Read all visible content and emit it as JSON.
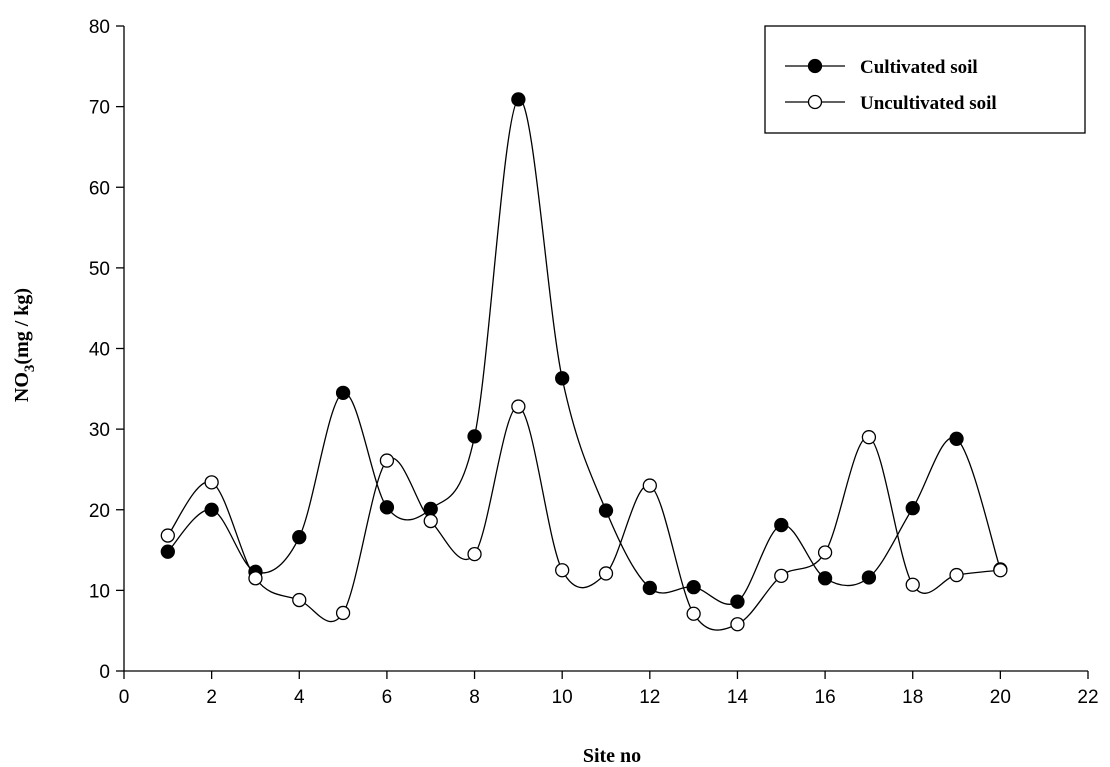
{
  "chart_data": {
    "type": "line",
    "title": "",
    "xlabel": "Site no",
    "ylabel_main": "NO",
    "ylabel_sub": "3",
    "ylabel_rest": "(mg / kg)",
    "xlim": [
      0,
      22
    ],
    "ylim": [
      0,
      80
    ],
    "xticks": [
      0,
      2,
      4,
      6,
      8,
      10,
      12,
      14,
      16,
      18,
      20,
      22
    ],
    "yticks": [
      0,
      10,
      20,
      30,
      40,
      50,
      60,
      70,
      80
    ],
    "grid": false,
    "legend_position": "top-right",
    "x": [
      1,
      2,
      3,
      4,
      5,
      6,
      7,
      8,
      9,
      10,
      11,
      12,
      13,
      14,
      15,
      16,
      17,
      18,
      19,
      20
    ],
    "series": [
      {
        "name": "Cultivated soil",
        "marker": "filled-circle",
        "values": [
          14.8,
          20.0,
          12.3,
          16.6,
          34.5,
          20.3,
          20.1,
          29.1,
          70.9,
          36.3,
          19.9,
          10.3,
          10.4,
          8.6,
          18.1,
          11.5,
          11.6,
          20.2,
          28.8,
          12.6
        ]
      },
      {
        "name": "Uncultivated soil",
        "marker": "open-circle",
        "values": [
          16.8,
          23.4,
          11.5,
          8.8,
          7.2,
          26.1,
          18.6,
          14.5,
          32.8,
          12.5,
          12.1,
          23.0,
          7.1,
          5.8,
          11.8,
          14.7,
          29.0,
          10.7,
          11.9,
          12.5
        ]
      }
    ]
  },
  "colors": {
    "line": "#000000",
    "filled_marker": "#000000",
    "open_marker_fill": "#ffffff",
    "background": "#ffffff"
  }
}
